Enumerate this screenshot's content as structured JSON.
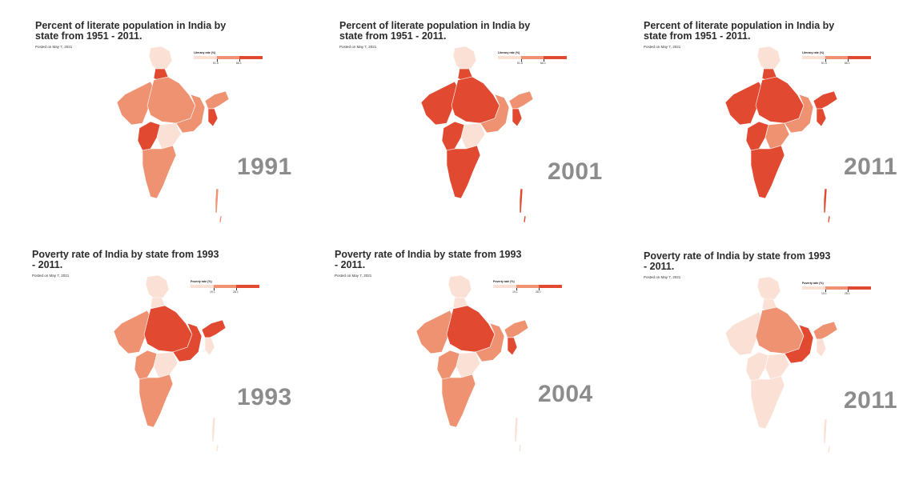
{
  "colors": {
    "light": "#fbe0d6",
    "mid": "#ef9272",
    "dark": "#e14a31"
  },
  "panels": [
    {
      "title": "Percent of literate population in India by state from 1951 - 2011.",
      "posted": "Posted on May 7, 2021",
      "legend_title": "Literacy rate (%)",
      "ticks": [
        "51.5",
        "66.1"
      ],
      "year": "1991",
      "level": {
        "north": "light",
        "punjab": "dark",
        "west": "mid",
        "center": "mid",
        "east": "mid",
        "northeast": "mid",
        "ne_south": "dark",
        "deccan_w": "dark",
        "deccan_c": "light",
        "south": "mid",
        "islands": "mid"
      }
    },
    {
      "title": "Percent of literate population in India by state from 1951 - 2011.",
      "posted": "Posted on May 7, 2021",
      "legend_title": "Literacy rate (%)",
      "ticks": [
        "51.5",
        "66.1"
      ],
      "year": "2001",
      "level": {
        "north": "light",
        "punjab": "dark",
        "west": "dark",
        "center": "dark",
        "east": "mid",
        "northeast": "mid",
        "ne_south": "dark",
        "deccan_w": "dark",
        "deccan_c": "light",
        "south": "dark",
        "islands": "dark"
      }
    },
    {
      "title": "Percent of literate population in India by state from 1951 - 2011.",
      "posted": "Posted on May 7, 2021",
      "legend_title": "Literacy rate (%)",
      "ticks": [
        "51.5",
        "66.1"
      ],
      "year": "2011",
      "level": {
        "north": "light",
        "punjab": "dark",
        "west": "dark",
        "center": "dark",
        "east": "mid",
        "northeast": "dark",
        "ne_south": "dark",
        "deccan_w": "dark",
        "deccan_c": "mid",
        "south": "dark",
        "islands": "dark"
      }
    },
    {
      "title": "Poverty rate of India by state from 1993 - 2011.",
      "posted": "Posted on May 7, 2021",
      "legend_title": "Poverty rate (%)",
      "ticks": [
        "19.1",
        "28.1"
      ],
      "year": "1993",
      "level": {
        "north": "light",
        "punjab": "light",
        "west": "mid",
        "center": "dark",
        "east": "dark",
        "northeast": "dark",
        "ne_south": "light",
        "deccan_w": "mid",
        "deccan_c": "light",
        "south": "mid",
        "islands": "light"
      }
    },
    {
      "title": "Poverty rate of India by state from 1993 - 2011.",
      "posted": "Posted on May 7, 2021",
      "legend_title": "Poverty rate (%)",
      "ticks": [
        "19.1",
        "28.1"
      ],
      "year": "2004",
      "level": {
        "north": "light",
        "punjab": "light",
        "west": "mid",
        "center": "dark",
        "east": "mid",
        "northeast": "mid",
        "ne_south": "dark",
        "deccan_w": "mid",
        "deccan_c": "light",
        "south": "mid",
        "islands": "light"
      }
    },
    {
      "title": "Poverty rate of India by state from 1993 - 2011.",
      "posted": "Posted on May 7, 2021",
      "legend_title": "Poverty rate (%)",
      "ticks": [
        "19.1",
        "28.1"
      ],
      "year": "2011",
      "level": {
        "north": "light",
        "punjab": "light",
        "west": "light",
        "center": "mid",
        "east": "dark",
        "northeast": "mid",
        "ne_south": "light",
        "deccan_w": "light",
        "deccan_c": "light",
        "south": "light",
        "islands": "light"
      }
    }
  ]
}
